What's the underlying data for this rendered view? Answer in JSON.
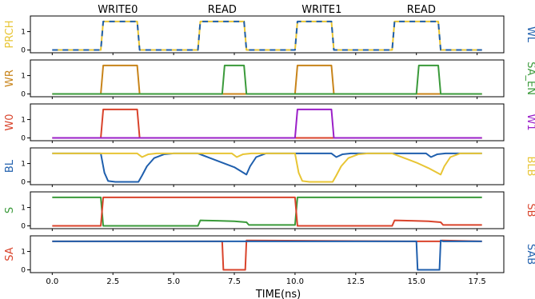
{
  "chart_data": {
    "type": "line",
    "xlabel": "TIME(ns)",
    "xlim": [
      -0.9,
      18.6
    ],
    "xticks": [
      0.0,
      2.5,
      5.0,
      7.5,
      10.0,
      12.5,
      15.0,
      17.5
    ],
    "xtick_labels": [
      "0.0",
      "2.5",
      "5.0",
      "7.5",
      "10.0",
      "12.5",
      "15.0",
      "17.5"
    ],
    "phase_labels": [
      {
        "text": "WRITE0",
        "x": 2.7
      },
      {
        "text": "READ",
        "x": 7.0
      },
      {
        "text": "WRITE1",
        "x": 11.1
      },
      {
        "text": "READ",
        "x": 15.2
      }
    ],
    "panels": [
      {
        "left_label": "PRCH",
        "left_color": "#e8c534",
        "right_label": "WL",
        "right_color": "#1f5fad",
        "ylim": [
          -0.15,
          1.85
        ],
        "yticks": [
          0,
          1
        ],
        "ytick_labels": [
          "0",
          "1"
        ],
        "series": [
          {
            "name": "PRCH",
            "color": "#e8c534",
            "dash": "",
            "points": [
              [
                0,
                0
              ],
              [
                2.0,
                0
              ],
              [
                2.1,
                1.55
              ],
              [
                3.5,
                1.55
              ],
              [
                3.6,
                0
              ],
              [
                6.0,
                0
              ],
              [
                6.1,
                1.55
              ],
              [
                7.9,
                1.55
              ],
              [
                8.0,
                0
              ],
              [
                10.0,
                0
              ],
              [
                10.1,
                1.55
              ],
              [
                11.5,
                1.55
              ],
              [
                11.6,
                0
              ],
              [
                14.0,
                0
              ],
              [
                14.1,
                1.55
              ],
              [
                15.9,
                1.55
              ],
              [
                16.0,
                0
              ],
              [
                17.7,
                0
              ]
            ]
          },
          {
            "name": "WL",
            "color": "#1f5fad",
            "dash": "7,6",
            "points": [
              [
                0,
                0
              ],
              [
                2.0,
                0
              ],
              [
                2.1,
                1.55
              ],
              [
                3.5,
                1.55
              ],
              [
                3.6,
                0
              ],
              [
                6.0,
                0
              ],
              [
                6.1,
                1.55
              ],
              [
                7.9,
                1.55
              ],
              [
                8.0,
                0
              ],
              [
                10.0,
                0
              ],
              [
                10.1,
                1.55
              ],
              [
                11.5,
                1.55
              ],
              [
                11.6,
                0
              ],
              [
                14.0,
                0
              ],
              [
                14.1,
                1.55
              ],
              [
                15.9,
                1.55
              ],
              [
                16.0,
                0
              ],
              [
                17.7,
                0
              ]
            ]
          }
        ]
      },
      {
        "left_label": "WR",
        "left_color": "#c8841a",
        "right_label": "SA_EN",
        "right_color": "#3a9a3a",
        "ylim": [
          -0.15,
          1.85
        ],
        "yticks": [
          0,
          1
        ],
        "ytick_labels": [
          "0",
          "1"
        ],
        "series": [
          {
            "name": "WR",
            "color": "#c8841a",
            "dash": "",
            "points": [
              [
                0,
                0
              ],
              [
                2.0,
                0
              ],
              [
                2.1,
                1.55
              ],
              [
                3.5,
                1.55
              ],
              [
                3.6,
                0
              ],
              [
                10.0,
                0
              ],
              [
                10.1,
                1.55
              ],
              [
                11.5,
                1.55
              ],
              [
                11.6,
                0
              ],
              [
                17.7,
                0
              ]
            ]
          },
          {
            "name": "SA_EN",
            "color": "#3a9a3a",
            "dash": "",
            "points": [
              [
                0,
                0
              ],
              [
                7.0,
                0
              ],
              [
                7.1,
                1.55
              ],
              [
                7.9,
                1.55
              ],
              [
                8.0,
                0
              ],
              [
                15.0,
                0
              ],
              [
                15.1,
                1.55
              ],
              [
                15.9,
                1.55
              ],
              [
                16.0,
                0
              ],
              [
                17.7,
                0
              ]
            ]
          }
        ]
      },
      {
        "left_label": "W0",
        "left_color": "#d9432b",
        "right_label": "W1",
        "right_color": "#9b1fc8",
        "ylim": [
          -0.15,
          1.85
        ],
        "yticks": [
          0,
          1
        ],
        "ytick_labels": [
          "0",
          "1"
        ],
        "series": [
          {
            "name": "W0",
            "color": "#d9432b",
            "dash": "",
            "points": [
              [
                0,
                0
              ],
              [
                2.0,
                0
              ],
              [
                2.1,
                1.55
              ],
              [
                3.5,
                1.55
              ],
              [
                3.6,
                0
              ],
              [
                17.7,
                0
              ]
            ]
          },
          {
            "name": "W1",
            "color": "#9b1fc8",
            "dash": "",
            "points": [
              [
                0,
                0
              ],
              [
                10.0,
                0
              ],
              [
                10.1,
                1.55
              ],
              [
                11.5,
                1.55
              ],
              [
                11.6,
                0
              ],
              [
                17.7,
                0
              ]
            ]
          }
        ]
      },
      {
        "left_label": "BL",
        "left_color": "#1f5fad",
        "right_label": "BLB",
        "right_color": "#e8c534",
        "ylim": [
          -0.15,
          1.85
        ],
        "yticks": [
          0,
          1
        ],
        "ytick_labels": [
          "0",
          "1"
        ],
        "series": [
          {
            "name": "BL",
            "color": "#1f5fad",
            "dash": "",
            "points": [
              [
                0,
                1.55
              ],
              [
                2.0,
                1.55
              ],
              [
                2.15,
                0.5
              ],
              [
                2.3,
                0.05
              ],
              [
                2.6,
                0.0
              ],
              [
                3.55,
                0.0
              ],
              [
                3.7,
                0.35
              ],
              [
                3.9,
                0.85
              ],
              [
                4.2,
                1.3
              ],
              [
                4.6,
                1.5
              ],
              [
                5.0,
                1.55
              ],
              [
                6.0,
                1.55
              ],
              [
                6.5,
                1.3
              ],
              [
                7.0,
                1.05
              ],
              [
                7.5,
                0.8
              ],
              [
                8.0,
                0.4
              ],
              [
                8.15,
                0.85
              ],
              [
                8.4,
                1.35
              ],
              [
                8.8,
                1.55
              ],
              [
                11.5,
                1.55
              ],
              [
                11.7,
                1.35
              ],
              [
                11.95,
                1.5
              ],
              [
                12.3,
                1.55
              ],
              [
                15.4,
                1.55
              ],
              [
                15.6,
                1.35
              ],
              [
                15.85,
                1.5
              ],
              [
                16.2,
                1.55
              ],
              [
                17.7,
                1.55
              ]
            ]
          },
          {
            "name": "BLB",
            "color": "#e8c534",
            "dash": "",
            "points": [
              [
                0,
                1.55
              ],
              [
                3.5,
                1.55
              ],
              [
                3.7,
                1.35
              ],
              [
                3.95,
                1.5
              ],
              [
                4.3,
                1.55
              ],
              [
                7.4,
                1.55
              ],
              [
                7.6,
                1.35
              ],
              [
                7.85,
                1.5
              ],
              [
                8.2,
                1.55
              ],
              [
                10.0,
                1.55
              ],
              [
                10.15,
                0.5
              ],
              [
                10.3,
                0.05
              ],
              [
                10.6,
                0.0
              ],
              [
                11.55,
                0.0
              ],
              [
                11.7,
                0.35
              ],
              [
                11.9,
                0.85
              ],
              [
                12.2,
                1.3
              ],
              [
                12.6,
                1.5
              ],
              [
                13.0,
                1.55
              ],
              [
                14.0,
                1.55
              ],
              [
                14.5,
                1.3
              ],
              [
                15.0,
                1.05
              ],
              [
                15.5,
                0.75
              ],
              [
                16.0,
                0.4
              ],
              [
                16.15,
                0.85
              ],
              [
                16.4,
                1.35
              ],
              [
                16.8,
                1.55
              ],
              [
                17.7,
                1.55
              ]
            ]
          }
        ]
      },
      {
        "left_label": "S",
        "left_color": "#3a9a3a",
        "right_label": "SB",
        "right_color": "#d9432b",
        "ylim": [
          -0.15,
          1.85
        ],
        "yticks": [
          0,
          1
        ],
        "ytick_labels": [
          "0",
          "1"
        ],
        "series": [
          {
            "name": "S",
            "color": "#3a9a3a",
            "dash": "",
            "points": [
              [
                0,
                1.55
              ],
              [
                2.0,
                1.55
              ],
              [
                2.1,
                0.0
              ],
              [
                6.0,
                0.0
              ],
              [
                6.1,
                0.3
              ],
              [
                6.8,
                0.28
              ],
              [
                7.5,
                0.25
              ],
              [
                8.0,
                0.2
              ],
              [
                8.1,
                0.05
              ],
              [
                10.0,
                0.05
              ],
              [
                10.1,
                1.55
              ],
              [
                17.7,
                1.55
              ]
            ]
          },
          {
            "name": "SB",
            "color": "#d9432b",
            "dash": "",
            "points": [
              [
                0,
                0.0
              ],
              [
                2.0,
                0.0
              ],
              [
                2.1,
                1.55
              ],
              [
                10.0,
                1.55
              ],
              [
                10.1,
                0.0
              ],
              [
                14.0,
                0.0
              ],
              [
                14.1,
                0.3
              ],
              [
                14.8,
                0.28
              ],
              [
                15.5,
                0.25
              ],
              [
                16.0,
                0.2
              ],
              [
                16.1,
                0.05
              ],
              [
                17.7,
                0.05
              ]
            ]
          }
        ]
      },
      {
        "left_label": "SA",
        "left_color": "#d9432b",
        "right_label": "SAB",
        "right_color": "#1f5fad",
        "ylim": [
          -0.15,
          1.85
        ],
        "yticks": [
          0,
          1
        ],
        "ytick_labels": [
          "0",
          "1"
        ],
        "series": [
          {
            "name": "SA",
            "color": "#d9432b",
            "dash": "",
            "points": [
              [
                0,
                1.55
              ],
              [
                7.0,
                1.55
              ],
              [
                7.05,
                0.0
              ],
              [
                7.95,
                0.0
              ],
              [
                8.0,
                1.6
              ],
              [
                15.0,
                1.55
              ],
              [
                16.0,
                1.55
              ],
              [
                16.05,
                1.6
              ],
              [
                17.7,
                1.55
              ]
            ]
          },
          {
            "name": "SAB",
            "color": "#1f5fad",
            "dash": "",
            "points": [
              [
                0,
                1.55
              ],
              [
                7.0,
                1.55
              ],
              [
                8.0,
                1.55
              ],
              [
                15.0,
                1.55
              ],
              [
                15.05,
                0.0
              ],
              [
                15.95,
                0.0
              ],
              [
                16.0,
                1.6
              ],
              [
                16.1,
                1.55
              ],
              [
                17.7,
                1.55
              ]
            ]
          }
        ]
      }
    ]
  }
}
